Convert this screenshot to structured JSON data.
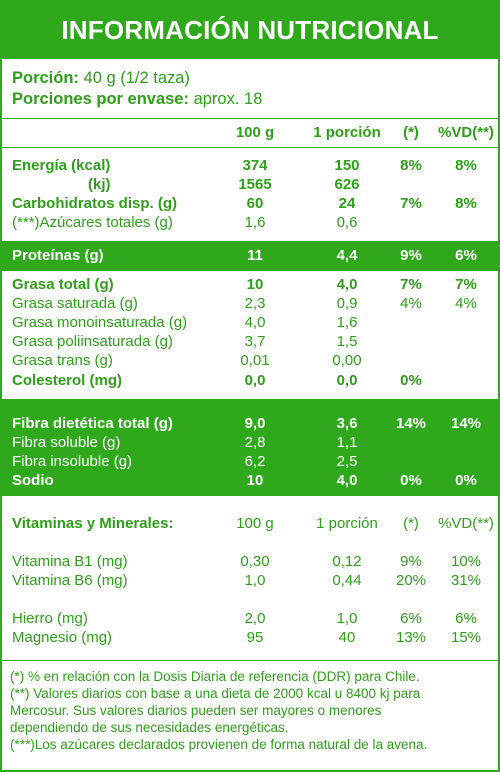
{
  "title": "INFORMACIÓN NUTRICIONAL",
  "portion": {
    "label": "Porción:",
    "value": "40 g (1/2 taza)",
    "servings_label": "Porciones por envase:",
    "servings_value": "aprox. 18"
  },
  "headers": {
    "per100": "100 g",
    "perPortion": "1 porción",
    "pct": "(*)",
    "vd": "%VD(**)"
  },
  "rows": {
    "energia": {
      "label": "Energía (kcal)",
      "c1": "374",
      "c2": "150",
      "c3": "8%",
      "c4": "8%"
    },
    "kj": {
      "label": "(kj)",
      "c1": "1565",
      "c2": "626"
    },
    "carbo": {
      "label": "Carbohidratos disp. (g)",
      "c1": "60",
      "c2": "24",
      "c3": "7%",
      "c4": "8%"
    },
    "azucares": {
      "label": "(***)Azúcares totales (g)",
      "c1": "1,6",
      "c2": "0,6"
    },
    "proteinas": {
      "label": "Proteínas (g)",
      "c1": "11",
      "c2": "4,4",
      "c3": "9%",
      "c4": "6%"
    },
    "grasa": {
      "label": "Grasa total (g)",
      "c1": "10",
      "c2": "4,0",
      "c3": "7%",
      "c4": "7%"
    },
    "saturada": {
      "label": "Grasa saturada (g)",
      "c1": "2,3",
      "c2": "0,9",
      "c3": "4%",
      "c4": "4%"
    },
    "mono": {
      "label": "Grasa monoinsaturada (g)",
      "c1": "4,0",
      "c2": "1,6"
    },
    "poli": {
      "label": "Grasa poliinsaturada (g)",
      "c1": "3,7",
      "c2": "1,5"
    },
    "trans": {
      "label": "Grasa trans (g)",
      "c1": "0,01",
      "c2": "0,00"
    },
    "colesterol": {
      "label": "Colesterol (mg)",
      "c1": "0,0",
      "c2": "0,0",
      "c3": "0%"
    },
    "fibra": {
      "label": "Fibra dietética total (g)",
      "c1": "9,0",
      "c2": "3,6",
      "c3": "14%",
      "c4": "14%"
    },
    "soluble": {
      "label": "Fibra soluble (g)",
      "c1": "2,8",
      "c2": "1,1"
    },
    "insoluble": {
      "label": "Fibra insoluble (g)",
      "c1": "6,2",
      "c2": "2,5"
    },
    "sodio": {
      "label": "Sodio",
      "c1": "10",
      "c2": "4,0",
      "c3": "0%",
      "c4": "0%"
    }
  },
  "vitamins": {
    "header": {
      "label": "Vitaminas y Minerales:",
      "c1": "100 g",
      "c2": "1 porción",
      "c3": "(*)",
      "c4": "%VD(**)"
    },
    "b1": {
      "label": "Vitamina B1 (mg)",
      "c1": "0,30",
      "c2": "0,12",
      "c3": "9%",
      "c4": "10%"
    },
    "b6": {
      "label": "Vitamina B6 (mg)",
      "c1": "1,0",
      "c2": "0,44",
      "c3": "20%",
      "c4": "31%"
    },
    "hierro": {
      "label": "Hierro (mg)",
      "c1": "2,0",
      "c2": "1,0",
      "c3": "6%",
      "c4": "6%"
    },
    "magnesio": {
      "label": "Magnesio (mg)",
      "c1": "95",
      "c2": "40",
      "c3": "13%",
      "c4": "15%"
    }
  },
  "footnotes": [
    "(*) % en relación con la Dosis Diaria de referencia (DDR) para Chile.",
    "(**) Valores diarios con base a una dieta de 2000 kcal u 8400 kj para",
    "Mercosur. Sus valores diarios pueden ser mayores o menores",
    "dependiendo de sus necesidades energéticas.",
    "(***)Los azúcares declarados provienen de forma natural de la avena."
  ]
}
